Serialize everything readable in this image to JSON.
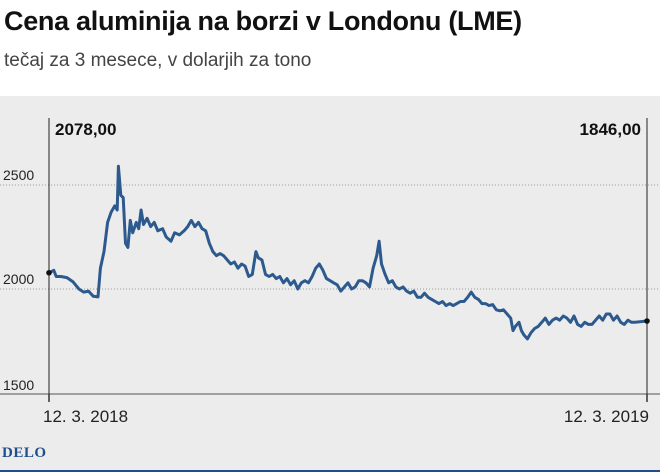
{
  "header": {
    "title": "Cena aluminija na borzi v Londonu (LME)",
    "subtitle": "tečaj za 3 mesece, v dolarjih za tono"
  },
  "footer": {
    "logo": "DELO"
  },
  "colors": {
    "line": "#2d5a8e",
    "grid": "#9a9a9a",
    "background": "#ececec",
    "brand": "#1f4e8c"
  },
  "chart_data": {
    "type": "line",
    "title": "Cena aluminija na borzi v Londonu (LME)",
    "subtitle": "tečaj za 3 mesece, v dolarjih za tono",
    "ylim": [
      1500,
      2700
    ],
    "xlim": [
      0,
      1
    ],
    "y_ticks": [
      {
        "value": 2500,
        "label": "2500"
      },
      {
        "value": 2000,
        "label": "2000"
      },
      {
        "value": 1500,
        "label": "1500"
      }
    ],
    "x_ticks": [
      {
        "value": 0,
        "label": "12. 3. 2018"
      },
      {
        "value": 1,
        "label": "12. 3. 2019"
      }
    ],
    "grid": true,
    "annotations": {
      "start": {
        "x": 0,
        "value": 2078,
        "label": "2078,00"
      },
      "end": {
        "x": 1,
        "value": 1846,
        "label": "1846,00"
      }
    },
    "series": [
      {
        "values": [
          [
            0.0,
            2078
          ],
          [
            0.008,
            2090
          ],
          [
            0.012,
            2060
          ],
          [
            0.02,
            2060
          ],
          [
            0.03,
            2055
          ],
          [
            0.04,
            2035
          ],
          [
            0.05,
            2000
          ],
          [
            0.058,
            1985
          ],
          [
            0.066,
            1990
          ],
          [
            0.074,
            1965
          ],
          [
            0.082,
            1962
          ],
          [
            0.086,
            2100
          ],
          [
            0.092,
            2180
          ],
          [
            0.098,
            2320
          ],
          [
            0.104,
            2370
          ],
          [
            0.11,
            2400
          ],
          [
            0.114,
            2380
          ],
          [
            0.116,
            2590
          ],
          [
            0.12,
            2450
          ],
          [
            0.124,
            2440
          ],
          [
            0.128,
            2220
          ],
          [
            0.132,
            2200
          ],
          [
            0.136,
            2330
          ],
          [
            0.14,
            2270
          ],
          [
            0.146,
            2320
          ],
          [
            0.15,
            2290
          ],
          [
            0.154,
            2380
          ],
          [
            0.158,
            2310
          ],
          [
            0.164,
            2340
          ],
          [
            0.17,
            2300
          ],
          [
            0.176,
            2320
          ],
          [
            0.182,
            2280
          ],
          [
            0.19,
            2290
          ],
          [
            0.196,
            2250
          ],
          [
            0.204,
            2230
          ],
          [
            0.21,
            2270
          ],
          [
            0.218,
            2260
          ],
          [
            0.226,
            2280
          ],
          [
            0.232,
            2300
          ],
          [
            0.238,
            2330
          ],
          [
            0.244,
            2300
          ],
          [
            0.25,
            2320
          ],
          [
            0.256,
            2290
          ],
          [
            0.262,
            2280
          ],
          [
            0.268,
            2220
          ],
          [
            0.274,
            2180
          ],
          [
            0.28,
            2160
          ],
          [
            0.286,
            2170
          ],
          [
            0.292,
            2160
          ],
          [
            0.298,
            2140
          ],
          [
            0.304,
            2120
          ],
          [
            0.31,
            2130
          ],
          [
            0.316,
            2100
          ],
          [
            0.322,
            2120
          ],
          [
            0.328,
            2110
          ],
          [
            0.334,
            2060
          ],
          [
            0.34,
            2070
          ],
          [
            0.346,
            2180
          ],
          [
            0.35,
            2150
          ],
          [
            0.356,
            2140
          ],
          [
            0.362,
            2070
          ],
          [
            0.368,
            2060
          ],
          [
            0.374,
            2070
          ],
          [
            0.38,
            2050
          ],
          [
            0.386,
            2060
          ],
          [
            0.392,
            2030
          ],
          [
            0.398,
            2050
          ],
          [
            0.404,
            2020
          ],
          [
            0.41,
            2040
          ],
          [
            0.416,
            2000
          ],
          [
            0.422,
            2030
          ],
          [
            0.428,
            2040
          ],
          [
            0.434,
            2030
          ],
          [
            0.44,
            2060
          ],
          [
            0.446,
            2100
          ],
          [
            0.452,
            2120
          ],
          [
            0.458,
            2090
          ],
          [
            0.464,
            2050
          ],
          [
            0.47,
            2040
          ],
          [
            0.476,
            2030
          ],
          [
            0.482,
            2020
          ],
          [
            0.488,
            1990
          ],
          [
            0.494,
            2010
          ],
          [
            0.5,
            2030
          ],
          [
            0.506,
            2000
          ],
          [
            0.512,
            2010
          ],
          [
            0.518,
            2040
          ],
          [
            0.524,
            2040
          ],
          [
            0.53,
            2030
          ],
          [
            0.536,
            2010
          ],
          [
            0.542,
            2100
          ],
          [
            0.548,
            2160
          ],
          [
            0.552,
            2230
          ],
          [
            0.556,
            2120
          ],
          [
            0.562,
            2070
          ],
          [
            0.568,
            2030
          ],
          [
            0.574,
            2040
          ],
          [
            0.58,
            2010
          ],
          [
            0.586,
            2000
          ],
          [
            0.592,
            2010
          ],
          [
            0.598,
            1990
          ],
          [
            0.604,
            1980
          ],
          [
            0.61,
            1990
          ],
          [
            0.616,
            1960
          ],
          [
            0.622,
            1960
          ],
          [
            0.628,
            1980
          ],
          [
            0.634,
            1960
          ],
          [
            0.64,
            1950
          ],
          [
            0.646,
            1940
          ],
          [
            0.652,
            1930
          ],
          [
            0.658,
            1940
          ],
          [
            0.664,
            1920
          ],
          [
            0.67,
            1930
          ],
          [
            0.676,
            1920
          ],
          [
            0.682,
            1930
          ],
          [
            0.688,
            1940
          ],
          [
            0.694,
            1940
          ],
          [
            0.7,
            1960
          ],
          [
            0.706,
            1985
          ],
          [
            0.712,
            1960
          ],
          [
            0.718,
            1950
          ],
          [
            0.724,
            1930
          ],
          [
            0.73,
            1930
          ],
          [
            0.736,
            1920
          ],
          [
            0.742,
            1925
          ],
          [
            0.748,
            1900
          ],
          [
            0.754,
            1895
          ],
          [
            0.76,
            1900
          ],
          [
            0.766,
            1880
          ],
          [
            0.772,
            1860
          ],
          [
            0.776,
            1800
          ],
          [
            0.78,
            1820
          ],
          [
            0.786,
            1840
          ],
          [
            0.79,
            1800
          ],
          [
            0.794,
            1780
          ],
          [
            0.8,
            1760
          ],
          [
            0.806,
            1790
          ],
          [
            0.812,
            1810
          ],
          [
            0.818,
            1820
          ],
          [
            0.824,
            1840
          ],
          [
            0.83,
            1860
          ],
          [
            0.836,
            1830
          ],
          [
            0.842,
            1850
          ],
          [
            0.848,
            1860
          ],
          [
            0.854,
            1850
          ],
          [
            0.86,
            1870
          ],
          [
            0.866,
            1860
          ],
          [
            0.872,
            1840
          ],
          [
            0.878,
            1870
          ],
          [
            0.884,
            1830
          ],
          [
            0.89,
            1820
          ],
          [
            0.896,
            1840
          ],
          [
            0.902,
            1830
          ],
          [
            0.908,
            1830
          ],
          [
            0.914,
            1850
          ],
          [
            0.92,
            1870
          ],
          [
            0.926,
            1850
          ],
          [
            0.932,
            1880
          ],
          [
            0.938,
            1880
          ],
          [
            0.944,
            1850
          ],
          [
            0.95,
            1870
          ],
          [
            0.956,
            1840
          ],
          [
            0.962,
            1830
          ],
          [
            0.968,
            1850
          ],
          [
            0.974,
            1840
          ],
          [
            0.98,
            1840
          ],
          [
            1.0,
            1846
          ]
        ]
      }
    ]
  }
}
